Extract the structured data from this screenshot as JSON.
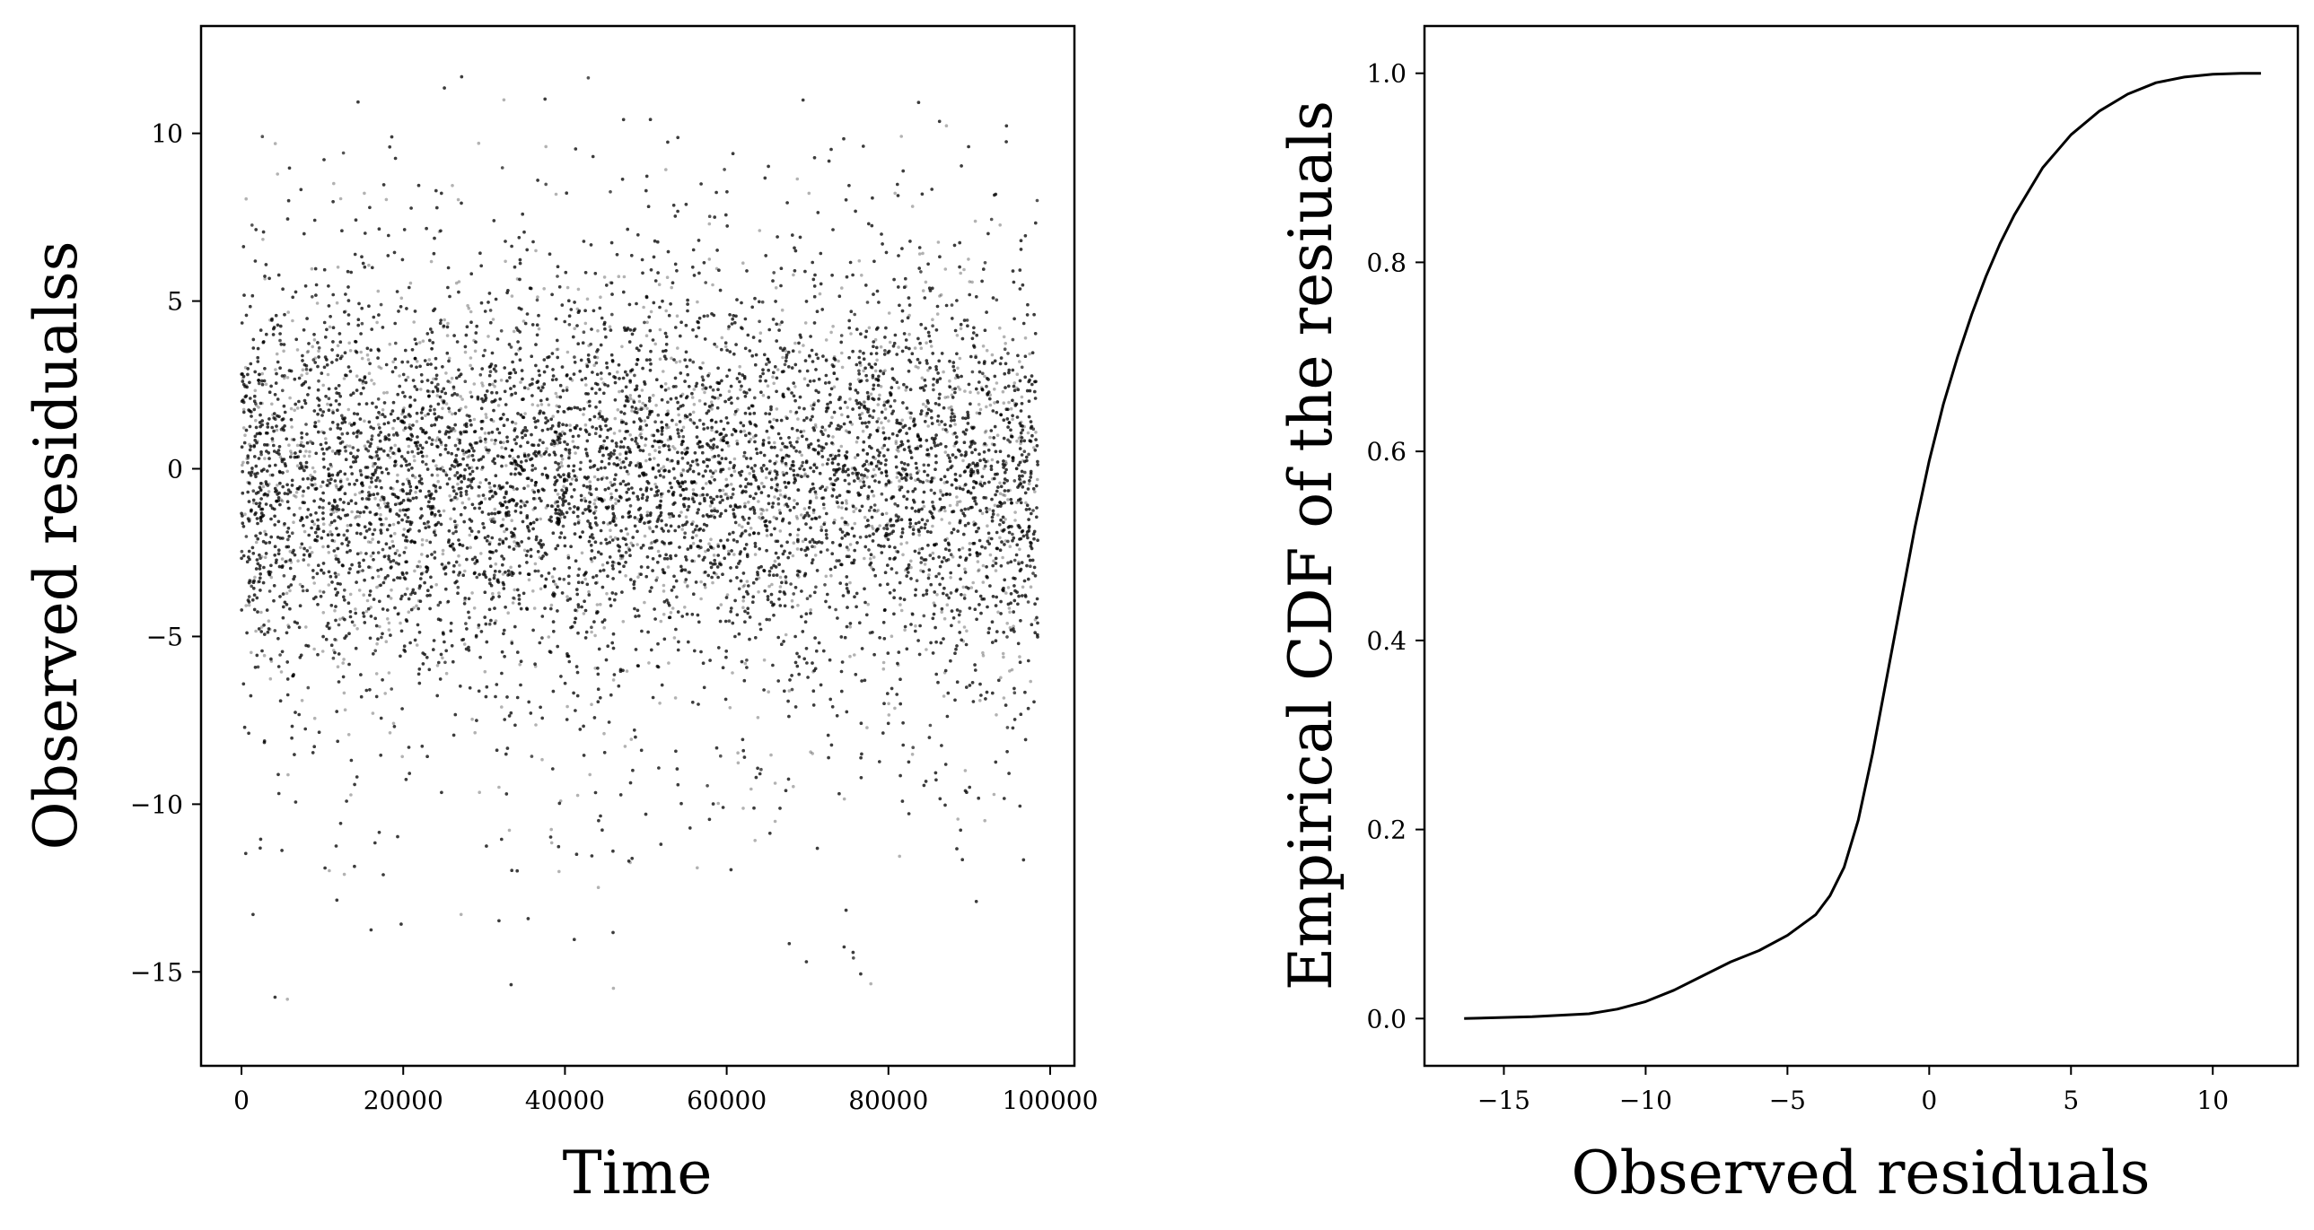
{
  "chart_data": [
    {
      "type": "scatter",
      "title": "",
      "xlabel": "Time",
      "ylabel": "Observed residualss",
      "xlim": [
        -5000,
        103000
      ],
      "ylim": [
        -17.8,
        13.2
      ],
      "xticks": [
        0,
        20000,
        40000,
        60000,
        80000,
        100000
      ],
      "xtick_labels": [
        "0",
        "20000",
        "40000",
        "60000",
        "80000",
        "100000"
      ],
      "yticks": [
        -15,
        -10,
        -5,
        0,
        5,
        10
      ],
      "ytick_labels": [
        "−15",
        "−10",
        "−5",
        "0",
        "5",
        "10"
      ],
      "grid": false,
      "series": [
        {
          "x_range": [
            0,
            98500
          ],
          "center": -0.3,
          "spread": 2.6,
          "y_min": -16.4,
          "y_max": 11.7,
          "color": "#000000",
          "alpha": 0.3
        }
      ]
    },
    {
      "type": "line",
      "title": "",
      "xlabel": "Observed residuals",
      "ylabel": "Empirical CDF of the resiuals",
      "xlim": [
        -17.8,
        13.0
      ],
      "ylim": [
        -0.05,
        1.05
      ],
      "xticks": [
        -15,
        -10,
        -5,
        0,
        5,
        10
      ],
      "xtick_labels": [
        "−15",
        "−10",
        "−5",
        "0",
        "5",
        "10"
      ],
      "yticks": [
        0.0,
        0.2,
        0.4,
        0.6,
        0.8,
        1.0
      ],
      "ytick_labels": [
        "0.0",
        "0.2",
        "0.4",
        "0.6",
        "0.8",
        "1.0"
      ],
      "grid": false,
      "series": [
        {
          "color": "#000000",
          "x": [
            -16.4,
            -14,
            -12,
            -11,
            -10,
            -9,
            -8,
            -7,
            -6,
            -5,
            -4,
            -3.5,
            -3,
            -2.5,
            -2,
            -1.5,
            -1,
            -0.5,
            0,
            0.5,
            1,
            1.5,
            2,
            2.5,
            3,
            4,
            5,
            6,
            7,
            8,
            9,
            10,
            11,
            11.7
          ],
          "y": [
            0.0,
            0.002,
            0.005,
            0.01,
            0.018,
            0.03,
            0.045,
            0.06,
            0.072,
            0.088,
            0.11,
            0.13,
            0.16,
            0.21,
            0.28,
            0.36,
            0.44,
            0.52,
            0.59,
            0.65,
            0.7,
            0.745,
            0.785,
            0.82,
            0.85,
            0.9,
            0.935,
            0.96,
            0.978,
            0.99,
            0.996,
            0.999,
            1.0,
            1.0
          ]
        }
      ]
    }
  ]
}
